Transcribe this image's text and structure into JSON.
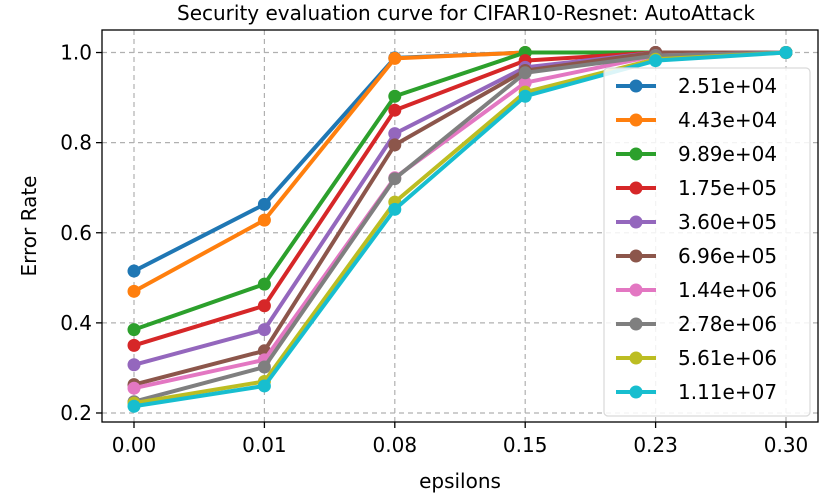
{
  "chart_data": {
    "type": "line",
    "title": "Security evaluation curve for CIFAR10-Resnet: AutoAttack",
    "xlabel": "epsilons",
    "ylabel": "Error Rate",
    "categories": [
      "0.00",
      "0.01",
      "0.08",
      "0.15",
      "0.23",
      "0.30"
    ],
    "ylim": [
      0.18,
      1.05
    ],
    "yticks": [
      0.2,
      0.4,
      0.6,
      0.8,
      1.0
    ],
    "ytick_labels": [
      "0.2",
      "0.4",
      "0.6",
      "0.8",
      "1.0"
    ],
    "grid": true,
    "legend_position": "right",
    "series": [
      {
        "name": "2.51e+04",
        "color": "#1f77b4",
        "values": [
          0.515,
          0.663,
          0.988,
          1.0,
          1.0,
          1.0
        ]
      },
      {
        "name": "4.43e+04",
        "color": "#ff7f0e",
        "values": [
          0.47,
          0.628,
          0.987,
          1.0,
          1.0,
          1.0
        ]
      },
      {
        "name": "9.89e+04",
        "color": "#2ca02c",
        "values": [
          0.385,
          0.486,
          0.903,
          1.0,
          1.0,
          1.0
        ]
      },
      {
        "name": "1.75e+05",
        "color": "#d62728",
        "values": [
          0.35,
          0.438,
          0.872,
          0.982,
          1.0,
          1.0
        ]
      },
      {
        "name": "3.60e+05",
        "color": "#9467bd",
        "values": [
          0.307,
          0.385,
          0.82,
          0.967,
          1.0,
          1.0
        ]
      },
      {
        "name": "6.96e+05",
        "color": "#8c564b",
        "values": [
          0.263,
          0.338,
          0.795,
          0.96,
          1.0,
          1.0
        ]
      },
      {
        "name": "1.44e+06",
        "color": "#e377c2",
        "values": [
          0.255,
          0.318,
          0.722,
          0.933,
          0.993,
          1.0
        ]
      },
      {
        "name": "2.78e+06",
        "color": "#7f7f7f",
        "values": [
          0.225,
          0.302,
          0.72,
          0.955,
          0.993,
          1.0
        ]
      },
      {
        "name": "5.61e+06",
        "color": "#bcbd22",
        "values": [
          0.222,
          0.27,
          0.668,
          0.912,
          0.985,
          1.0
        ]
      },
      {
        "name": "1.11e+07",
        "color": "#17becf",
        "values": [
          0.215,
          0.26,
          0.652,
          0.903,
          0.982,
          1.0
        ]
      }
    ]
  }
}
